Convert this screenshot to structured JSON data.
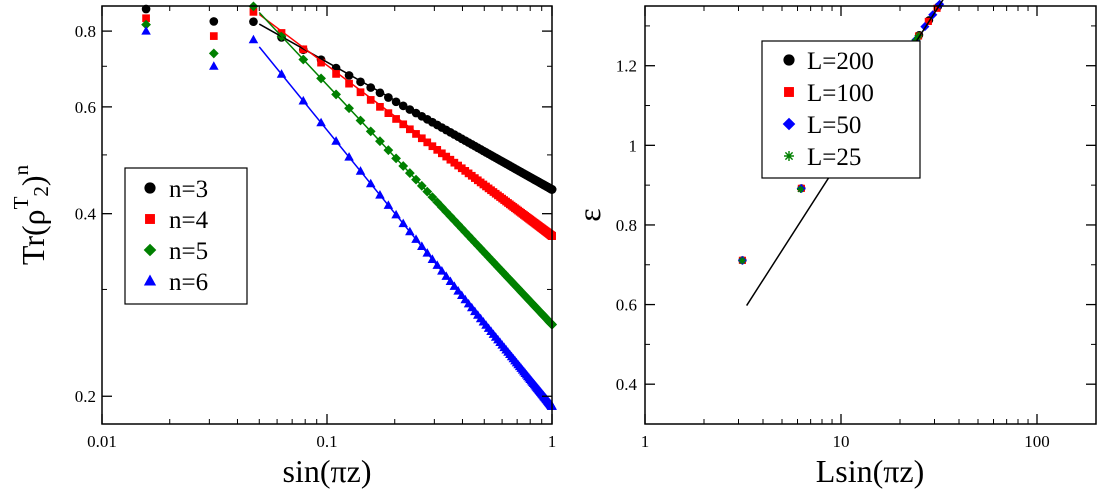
{
  "chart_data": [
    {
      "type": "scatter",
      "xscale": "log",
      "yscale": "log",
      "xlim": [
        0.01,
        1
      ],
      "ylim": [
        0.18,
        0.88
      ],
      "xlabel": "sin(πz)",
      "ylabel": "Tr(ρ^{T2})^n",
      "ylabel_parts": {
        "base": "Tr(ρ",
        "sup_T": "T",
        "sub_2": "2",
        "close": ")",
        "sup_n": "n"
      },
      "x_ticks": [
        {
          "value": 0.01,
          "label": "0.01"
        },
        {
          "value": 0.1,
          "label": "0.1"
        },
        {
          "value": 1,
          "label": "1"
        }
      ],
      "y_ticks": [
        {
          "value": 0.2,
          "label": "0.2"
        },
        {
          "value": 0.4,
          "label": "0.4"
        },
        {
          "value": 0.6,
          "label": "0.6"
        },
        {
          "value": 0.8,
          "label": "0.8"
        }
      ],
      "legend_position": "center-left",
      "series": [
        {
          "name": "n=3",
          "color": "#000000",
          "marker": "circle",
          "amp": 0.4385,
          "exponent": 0.2085,
          "line_amp": 0.44,
          "line_slope": 0.2085,
          "line_from": 0.05
        },
        {
          "name": "n=4",
          "color": "#ff0000",
          "marker": "square",
          "amp": 0.3675,
          "exponent": 0.2785,
          "line_amp": 0.37,
          "line_slope": 0.2785,
          "line_from": 0.05
        },
        {
          "name": "n=5",
          "color": "#008000",
          "marker": "diamond",
          "amp": 0.2625,
          "exponent": 0.3955,
          "line_amp": 0.2625,
          "line_slope": 0.3955,
          "line_from": 0.05
        },
        {
          "name": "n=6",
          "color": "#0000ff",
          "marker": "triangle",
          "amp": 0.1925,
          "exponent": 0.4555,
          "line_amp": 0.1925,
          "line_slope": 0.4555,
          "line_from": 0.05
        }
      ],
      "low_x_points": {
        "x": [
          0.0157,
          0.0314
        ],
        "values": {
          "n=3": [
            0.87,
            0.83
          ],
          "n=4": [
            0.84,
            0.785
          ],
          "n=5": [
            0.82,
            0.735
          ],
          "n=6": [
            0.8,
            0.7
          ]
        }
      }
    },
    {
      "type": "scatter",
      "xscale": "log",
      "yscale": "linear",
      "xlim": [
        1,
        200
      ],
      "ylim": [
        0.3,
        1.35
      ],
      "xlabel": "Lsin(πz)",
      "ylabel": "ε",
      "x_ticks": [
        {
          "value": 1,
          "label": "1"
        },
        {
          "value": 10,
          "label": "10"
        },
        {
          "value": 100,
          "label": "100"
        }
      ],
      "y_ticks": [
        {
          "value": 0.4,
          "label": "0.4"
        },
        {
          "value": 0.6,
          "label": "0.6"
        },
        {
          "value": 0.8,
          "label": "0.8"
        },
        {
          "value": 1,
          "label": "1"
        },
        {
          "value": 1.2,
          "label": "1.2"
        }
      ],
      "legend_position": "top-left",
      "fit_line": {
        "slope": 0.333,
        "intercept": 0.2,
        "x_from": 3.3,
        "x_to": 200,
        "color": "#000000"
      },
      "series": [
        {
          "name": "L=200",
          "color": "#000000",
          "marker": "circle",
          "L": 200
        },
        {
          "name": "L=100",
          "color": "#ff0000",
          "marker": "square",
          "L": 100
        },
        {
          "name": "L=50",
          "color": "#0000ff",
          "marker": "diamond",
          "L": 50
        },
        {
          "name": "L=25",
          "color": "#008000",
          "marker": "star",
          "L": 25
        }
      ]
    }
  ]
}
